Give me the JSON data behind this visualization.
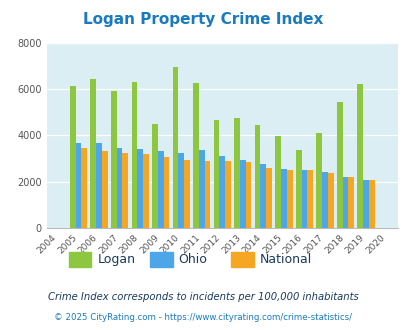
{
  "title": "Logan Property Crime Index",
  "years": [
    2004,
    2005,
    2006,
    2007,
    2008,
    2009,
    2010,
    2011,
    2012,
    2013,
    2014,
    2015,
    2016,
    2017,
    2018,
    2019,
    2020
  ],
  "logan": [
    0,
    6150,
    6450,
    5900,
    6300,
    4500,
    6950,
    6250,
    4650,
    4750,
    4450,
    3950,
    3350,
    4100,
    5450,
    6200,
    0
  ],
  "ohio": [
    0,
    3650,
    3650,
    3450,
    3400,
    3300,
    3250,
    3350,
    3100,
    2950,
    2750,
    2550,
    2500,
    2400,
    2200,
    2050,
    0
  ],
  "national": [
    0,
    3450,
    3300,
    3250,
    3200,
    3050,
    2950,
    2900,
    2900,
    2850,
    2600,
    2500,
    2500,
    2350,
    2200,
    2050,
    0
  ],
  "logan_color": "#8dc63f",
  "ohio_color": "#4da6e8",
  "national_color": "#f5a623",
  "bg_color": "#daeef3",
  "ylim": [
    0,
    8000
  ],
  "yticks": [
    0,
    2000,
    4000,
    6000,
    8000
  ],
  "subtitle": "Crime Index corresponds to incidents per 100,000 inhabitants",
  "footer": "© 2025 CityRating.com - https://www.cityrating.com/crime-statistics/",
  "legend_labels": [
    "Logan",
    "Ohio",
    "National"
  ],
  "title_color": "#1a7abf",
  "legend_text_color": "#1a3a5c",
  "subtitle_color": "#1a3a5c",
  "footer_color": "#1a7abf",
  "bar_width": 0.28
}
